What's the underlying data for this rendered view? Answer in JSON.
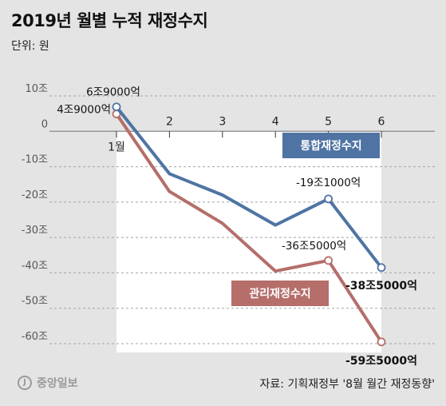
{
  "header": {
    "title": "2019년 월별 누적 재정수지",
    "unit": "단위: 원"
  },
  "footer": {
    "logo": "중앙일보",
    "logo_mark": "J",
    "source": "자료: 기획재정부 '8월 월간 재정동향'"
  },
  "colors": {
    "background": "#e4e4e4",
    "plot_area": "#ffffff",
    "series_tonghap": "#4f74a3",
    "series_gwanri": "#b56e6a"
  },
  "chart_data": {
    "type": "line",
    "x": [
      1,
      2,
      3,
      4,
      5,
      6
    ],
    "x_tick_labels": [
      "1월",
      "2",
      "3",
      "4",
      "5",
      "6"
    ],
    "y_tick_values": [
      10,
      0,
      -10,
      -20,
      -30,
      -40,
      -50,
      -60
    ],
    "y_tick_labels": [
      "10조",
      "0",
      "-10조",
      "-20조",
      "-30조",
      "-40조",
      "-50조",
      "-60조"
    ],
    "ylim": [
      -65,
      12
    ],
    "xlim": [
      0.95,
      6
    ],
    "grid": "horizontal dashed",
    "series": [
      {
        "name": "통합재정수지",
        "color": "#4f74a3",
        "values": [
          6.9,
          -12,
          -18,
          -26.5,
          -19.1,
          -38.5
        ],
        "point_labels": [
          {
            "index": 0,
            "text": "6조9000억",
            "bold": false
          },
          {
            "index": 4,
            "text": "-19조1000억",
            "bold": false
          },
          {
            "index": 5,
            "text": "-38조5000억",
            "bold": true
          }
        ]
      },
      {
        "name": "관리재정수지",
        "color": "#b56e6a",
        "values": [
          4.9,
          -17,
          -26,
          -39.5,
          -36.5,
          -59.5
        ],
        "point_labels": [
          {
            "index": 0,
            "text": "4조9000억",
            "bold": false
          },
          {
            "index": 4,
            "text": "-36조5000억",
            "bold": false
          },
          {
            "index": 5,
            "text": "-59조5000억",
            "bold": true
          }
        ]
      }
    ]
  }
}
